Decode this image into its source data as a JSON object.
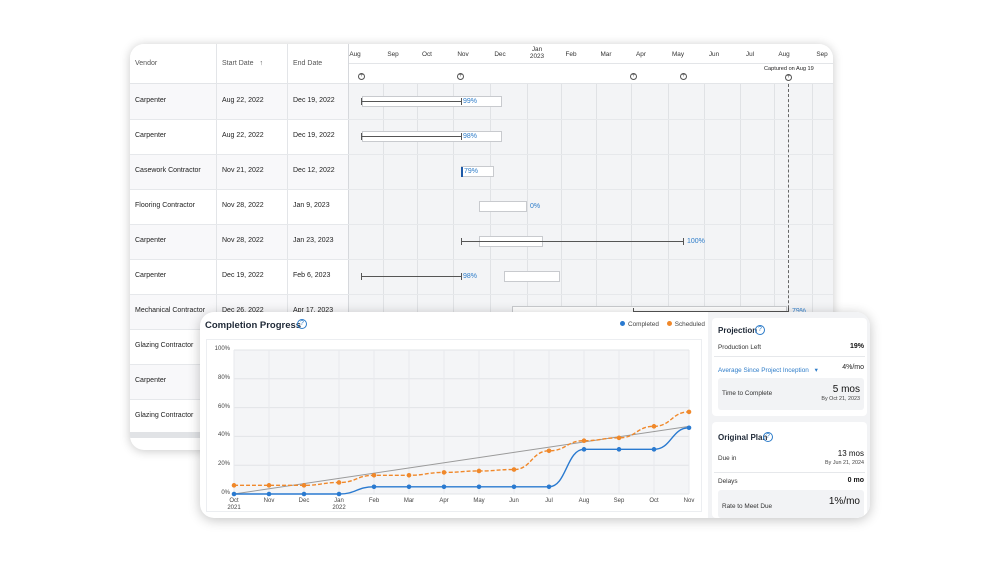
{
  "gantt": {
    "columns": {
      "vendor": "Vendor",
      "start": "Start Date",
      "start_sort": "↑",
      "end": "End Date"
    },
    "months": [
      "Aug",
      "Sep",
      "Oct",
      "Nov",
      "Dec",
      "Jan\n2023",
      "Feb",
      "Mar",
      "Apr",
      "May",
      "Jun",
      "Jul",
      "Aug",
      "Sep"
    ],
    "captured": "Captured on Aug 19",
    "marker_glyph": "+",
    "rows": [
      {
        "vendor": "Carpenter",
        "start": "Aug 22, 2022",
        "end": "Dec 19, 2022",
        "pct": "99%"
      },
      {
        "vendor": "Carpenter",
        "start": "Aug 22, 2022",
        "end": "Dec 19, 2022",
        "pct": "98%"
      },
      {
        "vendor": "Casework Contractor",
        "start": "Nov 21, 2022",
        "end": "Dec 12, 2022",
        "pct": "79%"
      },
      {
        "vendor": "Flooring Contractor",
        "start": "Nov 28, 2022",
        "end": "Jan 9, 2023",
        "pct": "0%"
      },
      {
        "vendor": "Carpenter",
        "start": "Nov 28, 2022",
        "end": "Jan 23, 2023",
        "pct": "100%"
      },
      {
        "vendor": "Carpenter",
        "start": "Dec 19, 2022",
        "end": "Feb 6, 2023",
        "pct": "98%"
      },
      {
        "vendor": "Mechanical Contractor",
        "start": "Dec 26, 2022",
        "end": "Apr 17, 2023",
        "pct": "79%"
      },
      {
        "vendor": "Glazing Contractor",
        "start": "",
        "end": "",
        "pct": ""
      },
      {
        "vendor": "Carpenter",
        "start": "",
        "end": "",
        "pct": ""
      },
      {
        "vendor": "Glazing Contractor",
        "start": "",
        "end": "",
        "pct": ""
      }
    ]
  },
  "progress": {
    "title": "Completion Progress",
    "help_glyph": "?",
    "legend": {
      "completed": "Completed",
      "scheduled": "Scheduled"
    },
    "colors": {
      "completed": "#2a7ad0",
      "scheduled": "#f0882a",
      "trend": "#9a9a9a"
    }
  },
  "chart_data": {
    "type": "line",
    "title": "Completion Progress",
    "x": [
      "Oct\n2021",
      "Nov",
      "Dec",
      "Jan\n2022",
      "Feb",
      "Mar",
      "Apr",
      "May",
      "Jun",
      "Jul",
      "Aug",
      "Sep",
      "Oct",
      "Nov"
    ],
    "y_ticks": [
      "0%",
      "20%",
      "40%",
      "60%",
      "80%",
      "100%"
    ],
    "ylim": [
      0,
      100
    ],
    "series": [
      {
        "name": "Completed",
        "values": [
          0,
          0,
          0,
          0,
          5,
          5,
          5,
          5,
          5,
          5,
          31,
          31,
          31,
          46
        ]
      },
      {
        "name": "Scheduled",
        "values": [
          6,
          6,
          6,
          8,
          13,
          13,
          15,
          16,
          17,
          30,
          37,
          39,
          47,
          57
        ]
      }
    ],
    "trend": {
      "from": 0,
      "to": 47
    },
    "grid": true,
    "legend_position": "top-right"
  },
  "projection": {
    "title": "Projection",
    "production_left_label": "Production Left",
    "production_left_value": "19%",
    "average_label": "Average Since Project Inception",
    "average_caret": "▾",
    "average_value": "4%/mo",
    "time_label": "Time to Complete",
    "time_value": "5 mos",
    "time_sub": "By Oct 21, 2023"
  },
  "original_plan": {
    "title": "Original Plan",
    "due_label": "Due in",
    "due_value": "13 mos",
    "due_sub": "By Jun 21, 2024",
    "delays_label": "Delays",
    "delays_value": "0 mo",
    "rate_label": "Rate to Meet Due",
    "rate_value": "1%/mo"
  }
}
